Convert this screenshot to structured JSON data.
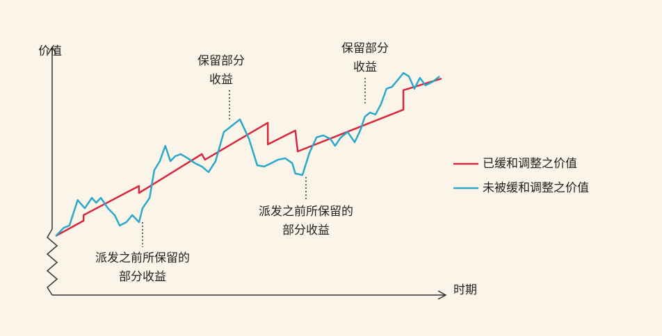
{
  "chart_data": {
    "type": "line",
    "y_label": "价值",
    "x_label": "时期",
    "xlim": [
      0,
      100
    ],
    "ylim": [
      0,
      100
    ],
    "series": [
      {
        "name": "已缓和调整之价值",
        "color": "#d7263d",
        "x": [
          0.9,
          8.0,
          8.0,
          22.1,
          22.1,
          38.1,
          38.9,
          54.9,
          54.9,
          61.9,
          62.5,
          89.4,
          89.4,
          99.1
        ],
        "values": [
          24.3,
          30.6,
          32.9,
          44.9,
          42.0,
          58.0,
          55.7,
          70.9,
          62.0,
          67.7,
          59.1,
          76.3,
          84.3,
          89.1
        ]
      },
      {
        "name": "未被缓和调整之价值",
        "color": "#2aa8c9",
        "x": [
          0.9,
          3.0,
          4.4,
          6.5,
          8.3,
          10.1,
          11.2,
          12.4,
          14.2,
          15.9,
          17.2,
          18.9,
          20.4,
          22.1,
          23.0,
          24.8,
          26.0,
          27.4,
          28.8,
          30.1,
          31.3,
          32.7,
          34.5,
          36.3,
          38.1,
          39.8,
          41.6,
          43.7,
          46.0,
          47.8,
          50.1,
          52.2,
          54.0,
          55.8,
          57.5,
          59.3,
          61.1,
          61.9,
          63.7,
          65.5,
          67.3,
          69.0,
          70.8,
          72.0,
          73.5,
          75.2,
          77.0,
          78.4,
          79.6,
          80.9,
          82.3,
          83.7,
          85.1,
          86.5,
          88.0,
          89.4,
          90.8,
          92.2,
          93.6,
          95.0,
          96.8,
          98.6
        ],
        "values": [
          24.3,
          27.7,
          28.6,
          39.1,
          35.7,
          40.0,
          38.0,
          40.0,
          35.7,
          32.9,
          28.6,
          30.0,
          32.9,
          30.0,
          35.7,
          40.0,
          51.4,
          55.1,
          61.4,
          55.1,
          57.1,
          58.0,
          56.3,
          54.3,
          52.9,
          50.6,
          55.1,
          67.1,
          70.0,
          72.3,
          64.3,
          53.4,
          52.9,
          54.3,
          55.7,
          56.3,
          54.3,
          50.0,
          49.4,
          58.6,
          64.9,
          65.7,
          64.3,
          61.4,
          64.9,
          67.1,
          62.9,
          67.7,
          73.4,
          75.1,
          74.3,
          78.6,
          84.9,
          85.7,
          88.6,
          91.4,
          90.0,
          84.9,
          89.4,
          86.3,
          87.7,
          90.0
        ]
      }
    ],
    "annotations": [
      [
        "派发之前所保留的",
        "部分收益"
      ],
      [
        "保留部分",
        "收益"
      ],
      [
        "派发之前所保留的",
        "部分收益"
      ],
      [
        "保留部分",
        "收益"
      ]
    ]
  }
}
